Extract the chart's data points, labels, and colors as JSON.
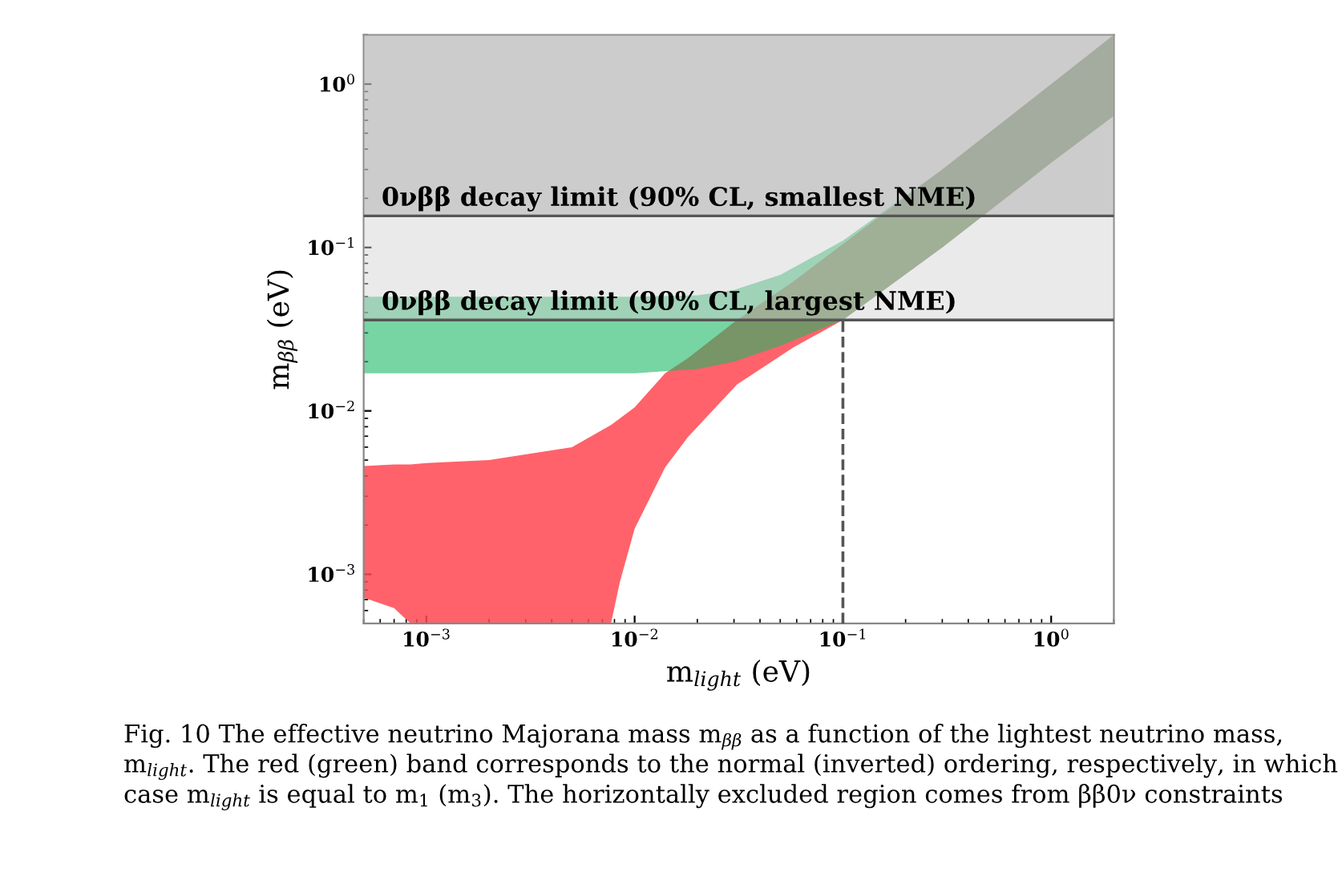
{
  "chart_data": {
    "type": "area",
    "xlabel": "m$_{light}$ (eV)",
    "ylabel": "m$_{ββ}$ (eV)",
    "log": "xy",
    "grid": false,
    "legend": false,
    "xlim": [
      0.0005,
      2
    ],
    "ylim": [
      0.0005,
      2
    ],
    "xticks": [
      {
        "value": 0.001,
        "label": "10$^{−3}$"
      },
      {
        "value": 0.01,
        "label": "10$^{−2}$"
      },
      {
        "value": 0.1,
        "label": "10$^{−1}$"
      },
      {
        "value": 1,
        "label": "10$^{0}$"
      }
    ],
    "yticks": [
      {
        "value": 0.001,
        "label": "10$^{−3}$"
      },
      {
        "value": 0.01,
        "label": "10$^{−2}$"
      },
      {
        "value": 0.1,
        "label": "10$^{−1}$"
      },
      {
        "value": 1,
        "label": "10$^{0}$"
      }
    ],
    "series": [
      {
        "color": "#ff4650",
        "x": [
          0.0005,
          0.0007,
          0.00084,
          0.001,
          0.002,
          0.005,
          0.0077,
          0.0085,
          0.01,
          0.014,
          0.018,
          0.031,
          0.058,
          0.1,
          0.3,
          1,
          2
        ],
        "values": [
          null,
          null,
          null,
          null,
          null,
          null,
          null,
          null,
          null,
          null,
          null,
          null,
          null,
          null,
          null,
          null,
          null
        ],
        "upper": [
          0.0046,
          0.0047,
          0.0047,
          0.0048,
          0.005,
          0.006,
          0.0082,
          0.009,
          0.0105,
          0.017,
          0.021,
          0.036,
          0.062,
          0.105,
          0.3,
          1,
          2
        ],
        "lower": [
          0.00072,
          0.00062,
          0.0005,
          0.0005,
          0.0005,
          0.0005,
          0.0005,
          0.0009,
          0.0019,
          0.0045,
          0.0069,
          0.0145,
          0.0245,
          0.036,
          0.1,
          0.33,
          0.64
        ]
      },
      {
        "color": "#1db866",
        "x": [
          0.0005,
          0.01,
          0.02,
          0.03,
          0.05,
          0.1,
          0.3,
          1,
          2
        ],
        "values": [
          null,
          null,
          null,
          null,
          null,
          null,
          null,
          null,
          null
        ],
        "upper": [
          0.05,
          0.05,
          0.051,
          0.055,
          0.068,
          0.11,
          0.3,
          1,
          2
        ],
        "lower": [
          0.017,
          0.017,
          0.018,
          0.02,
          0.025,
          0.036,
          0.1,
          0.33,
          0.64
        ]
      },
      {
        "type": "line",
        "color": "#555555",
        "line_style": "dashed",
        "x": [
          0.1,
          0.1
        ],
        "values": [
          0.0005,
          0.036
        ]
      }
    ],
    "bands": [
      {
        "axis": "y",
        "from": 0.036,
        "to": 2,
        "color": "#d0d0d0"
      },
      {
        "axis": "y",
        "from": 0.156,
        "to": 2,
        "color": "#a8a8a8"
      }
    ],
    "ref_lines": [
      {
        "axis": "y",
        "value": 0.156,
        "label": "0νββ decay limit (90% CL, smallest NME)",
        "color": "#555555"
      },
      {
        "axis": "y",
        "value": 0.036,
        "label": "0νββ decay limit (90% CL, largest NME)",
        "color": "#555555"
      }
    ],
    "annotations": [
      "Fig. 10 The effective neutrino Majorana mass m$_{ββ}$ as a function of the lightest neutrino mass, m$_{light}$. The red (green) band corresponds to the normal (inverted) ordering, respectively, in which case m$_{light}$ is equal to m$_{1}$ (m$_{3}$). The horizontally excluded region comes from ββ0ν constraints"
    ]
  }
}
